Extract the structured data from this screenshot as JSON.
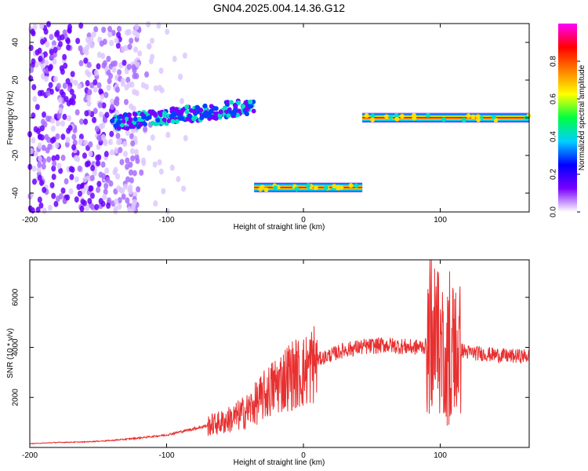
{
  "title": "GN04.2025.004.14.36.G12",
  "chart_data": [
    {
      "type": "heatmap",
      "xlabel": "Height of straight line (km)",
      "ylabel": "Frequency (Hz)",
      "xlim": [
        -200,
        165
      ],
      "ylim": [
        -50,
        50
      ],
      "x_ticks": [
        -200,
        -100,
        0,
        100
      ],
      "x_tick_labels": [
        "-200",
        "-100",
        "0",
        "100"
      ],
      "y_ticks": [
        -40,
        -20,
        0,
        20,
        40
      ],
      "y_tick_labels": [
        "-40",
        "-20",
        "0",
        "20",
        "40"
      ],
      "colorbar": {
        "label": "Normalized spectral amplitude",
        "range": [
          0,
          1
        ],
        "ticks": [
          0.0,
          0.2,
          0.4,
          0.6,
          0.8
        ],
        "tick_labels": [
          "0.0",
          "0.2",
          "0.4",
          "0.6",
          "0.8"
        ],
        "colormap": [
          "#ffffff",
          "#7a00ff",
          "#0000ff",
          "#00d0ff",
          "#00ff40",
          "#ffff00",
          "#ff8000",
          "#ff0000",
          "#ff00ff"
        ]
      },
      "features": [
        {
          "name": "noise",
          "x_range": [
            -200,
            -120
          ],
          "freq_range": [
            -50,
            50
          ],
          "amplitude": 0.15
        },
        {
          "name": "ridge",
          "x_range": [
            -140,
            -36
          ],
          "freq_start": -3,
          "freq_end": 6,
          "amplitude": 0.35
        },
        {
          "name": "segment",
          "x_range": [
            -36,
            43
          ],
          "freq": -37,
          "amplitude": 0.9
        },
        {
          "name": "segment",
          "x_range": [
            43,
            165
          ],
          "freq": 0,
          "amplitude": 0.95
        }
      ],
      "grid": false
    },
    {
      "type": "line",
      "xlabel": "Height of straight line (km)",
      "ylabel": "SNR (10 * v/v)",
      "xlim": [
        -200,
        165
      ],
      "ylim": [
        0,
        7500
      ],
      "x_ticks": [
        -200,
        -100,
        0,
        100
      ],
      "x_tick_labels": [
        "-200",
        "-100",
        "0",
        "100"
      ],
      "y_ticks": [
        2000,
        4000,
        6000
      ],
      "y_tick_labels": [
        "2000",
        "4000",
        "6000"
      ],
      "series": [
        {
          "color": "#e83030",
          "x": [
            -200,
            -180,
            -160,
            -140,
            -120,
            -100,
            -80,
            -60,
            -50,
            -40,
            -30,
            -20,
            -10,
            0,
            10,
            20,
            30,
            40,
            50,
            60,
            70,
            80,
            90,
            100,
            110,
            120,
            130,
            140,
            150,
            165
          ],
          "y": [
            150,
            200,
            220,
            280,
            380,
            500,
            750,
            1000,
            1200,
            1500,
            2000,
            2500,
            2900,
            3000,
            3500,
            3700,
            3900,
            4000,
            4050,
            4100,
            4050,
            4000,
            4050,
            4000,
            4000,
            3800,
            3750,
            3700,
            3650,
            3650
          ]
        }
      ],
      "grid": false
    }
  ]
}
